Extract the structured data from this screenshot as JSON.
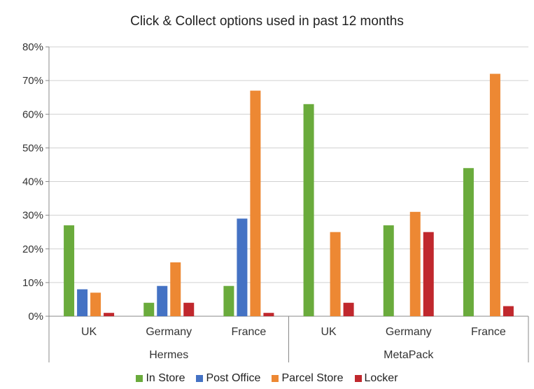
{
  "chart_data": {
    "type": "bar",
    "title": "Click & Collect options used in past 12 months",
    "xlabel": "",
    "ylabel": "",
    "ylim": [
      0,
      80
    ],
    "y_ticks": [
      "0%",
      "10%",
      "20%",
      "30%",
      "40%",
      "50%",
      "60%",
      "70%",
      "80%"
    ],
    "groups": [
      {
        "name": "Hermes",
        "categories": [
          "UK",
          "Germany",
          "France"
        ]
      },
      {
        "name": "MetaPack",
        "categories": [
          "UK",
          "Germany",
          "France"
        ]
      }
    ],
    "series": [
      {
        "name": "In Store",
        "color": "#6aab3c",
        "values": [
          27,
          4,
          9,
          63,
          27,
          44
        ]
      },
      {
        "name": "Post Office",
        "color": "#4472c4",
        "values": [
          8,
          9,
          29,
          0,
          0,
          0
        ]
      },
      {
        "name": "Parcel Store",
        "color": "#ed8833",
        "values": [
          7,
          16,
          67,
          25,
          31,
          72
        ]
      },
      {
        "name": "Locker",
        "color": "#c0282d",
        "values": [
          1,
          4,
          1,
          4,
          25,
          3
        ]
      }
    ],
    "grid": true,
    "legend_position": "bottom"
  }
}
